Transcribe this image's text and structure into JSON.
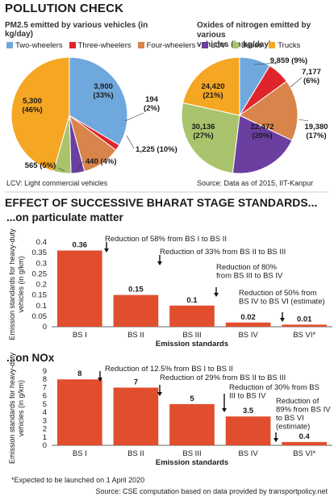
{
  "header": {
    "title": "POLLUTION CHECK"
  },
  "pies": {
    "left_title": "PM2.5 emitted by various vehicles (in kg/day)",
    "right_title_1": "Oxides of nitrogen emitted by various",
    "right_title_2": "vehicles (in kg/day)"
  },
  "legend": {
    "items": [
      {
        "label": "Two-wheelers",
        "color": "#6fa8dc"
      },
      {
        "label": "Three-wheelers",
        "color": "#e0242b"
      },
      {
        "label": "Four-wheelers",
        "color": "#d9844a"
      },
      {
        "label": "LCV",
        "color": "#6b3fa0"
      },
      {
        "label": "Buses",
        "color": "#a9c46c"
      },
      {
        "label": "Trucks",
        "color": "#f5a623"
      }
    ]
  },
  "notes": {
    "lcv": "LCV: Light commercial vehicles",
    "source_pie": "Source: Data as of 2015, IIT-Kanpur",
    "expected": "*Expected to be launched on 1 April 2020",
    "source_bottom": "Source: CSE computation based on data provided by transportpolicy.net"
  },
  "section": {
    "title": "EFFECT OF SUCCESSIVE BHARAT STAGE STANDARDS...",
    "pm_title": "...on particulate matter",
    "nox_title": "...on NOx"
  },
  "chart_data": [
    {
      "type": "pie",
      "title": "PM2.5 emitted by various vehicles (in kg/day)",
      "categories": [
        "Two-wheelers",
        "Three-wheelers",
        "Four-wheelers",
        "LCV",
        "Buses",
        "Trucks"
      ],
      "values": [
        3900,
        194,
        1225,
        440,
        565,
        5300
      ],
      "labels": [
        "3,900\n(33%)",
        "194\n(2%)",
        "1,225 (10%)",
        "440 (4%)",
        "565 (5%)",
        "5,300\n(46%)"
      ]
    },
    {
      "type": "pie",
      "title": "Oxides of nitrogen emitted by various vehicles (in kg/day)",
      "categories": [
        "Two-wheelers",
        "Three-wheelers",
        "Four-wheelers",
        "LCV",
        "Buses",
        "Trucks"
      ],
      "values": [
        9859,
        7177,
        19380,
        22472,
        30136,
        24420
      ],
      "labels": [
        "9,859 (9%)",
        "7,177\n(6%)",
        "19,380\n(17%)",
        "22,472\n(20%)",
        "30,136\n(27%)",
        "24,420\n(21%)"
      ]
    },
    {
      "type": "bar",
      "title": "...on particulate matter",
      "categories": [
        "BS I",
        "BS II",
        "BS III",
        "BS IV",
        "BS VI*"
      ],
      "values": [
        0.36,
        0.15,
        0.1,
        0.02,
        0.01
      ],
      "value_labels": [
        "0.36",
        "0.15",
        "0.1",
        "0.02",
        "0.01"
      ],
      "xlabel": "Emission standards",
      "ylabel": "Emission standards for heavy-duty vehicles (in g/km)",
      "ylim": [
        0,
        0.4
      ],
      "yticks": [
        "0",
        "0.05",
        "0.1",
        "0.15",
        "0.2",
        "0.25",
        "0.3",
        "0.35",
        "0.4"
      ],
      "color": "#e04e2e",
      "annotations": [
        "Reduction of 58% from BS I to BS II",
        "Reduction of 33% from BS II to BS III",
        "Reduction of 80% from BS III to BS IV",
        "Reduction of 50% from BS IV to BS VI (estimate)"
      ]
    },
    {
      "type": "bar",
      "title": "...on NOx",
      "categories": [
        "BS I",
        "BS II",
        "BS III",
        "BS IV",
        "BS VI*"
      ],
      "values": [
        8,
        7,
        5,
        3.5,
        0.4
      ],
      "value_labels": [
        "8",
        "7",
        "5",
        "3.5",
        "0.4"
      ],
      "xlabel": "Emission standards",
      "ylabel": "Emission standards for heavy-duty vehicles (in g/km)",
      "ylim": [
        0,
        9
      ],
      "yticks": [
        "0",
        "1",
        "2",
        "3",
        "4",
        "5",
        "6",
        "7",
        "8",
        "9"
      ],
      "color": "#e04e2e",
      "annotations": [
        "Reduction of 12.5% from BS I to BS II",
        "Reduction of 29% from BS II to BS III",
        "Reduction of 30% from BS III to BS IV",
        "Reduction of 89% from BS IV to BS VI (estimate)"
      ]
    }
  ]
}
